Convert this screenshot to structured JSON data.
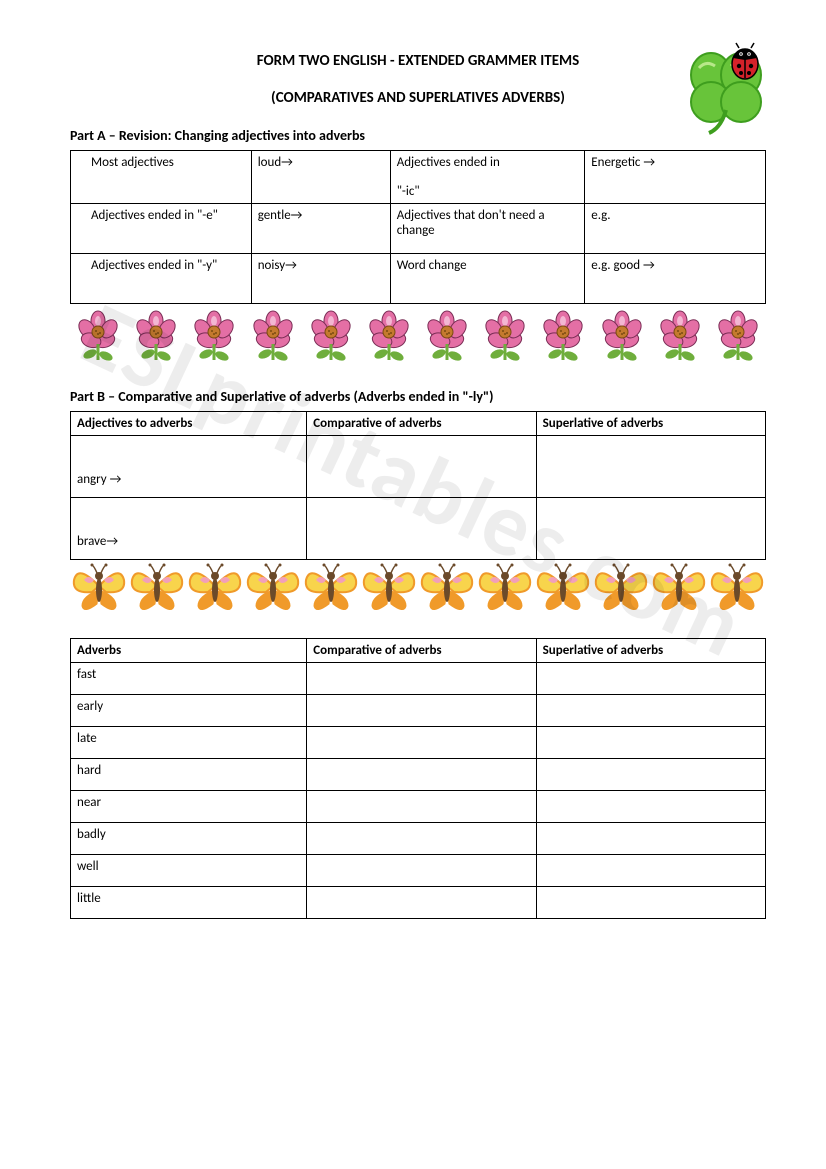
{
  "title_line1": "FORM TWO ENGLISH - EXTENDED GRAMMER ITEMS",
  "title_line2": "(COMPARATIVES AND SUPERLATIVES ADVERBS)",
  "watermark_text": "ESLprintables.com",
  "partA": {
    "heading": "Part A – Revision: Changing adjectives into adverbs",
    "rows": [
      [
        "Most adjectives",
        "loud→",
        "Adjectives ended in \"-ic\"",
        "Energetic →"
      ],
      [
        "Adjectives ended in \"-e\"",
        "gentle→",
        "Adjectives that don't need a change",
        "e.g."
      ],
      [
        "Adjectives ended in \"-y\"",
        "noisy→",
        "Word change",
        "e.g. good →"
      ]
    ],
    "col_widths": [
      "26%",
      "20%",
      "28%",
      "26%"
    ]
  },
  "partB": {
    "heading": "Part B – Comparative and Superlative of adverbs (Adverbs ended in \"-ly\")",
    "headers": [
      "Adjectives to adverbs",
      "Comparative of adverbs",
      "Superlative of adverbs"
    ],
    "rows": [
      "angry →",
      "brave→"
    ]
  },
  "partC": {
    "headers": [
      "Adverbs",
      "Comparative of adverbs",
      "Superlative of adverbs"
    ],
    "rows": [
      "fast",
      "early",
      "late",
      "hard",
      "near",
      "badly",
      "well",
      "little"
    ]
  },
  "flower_band": {
    "count": 12
  },
  "butterfly_band": {
    "count": 12
  },
  "colors": {
    "flower_petal": "#e46fa5",
    "flower_highlight": "#f3b6d2",
    "flower_center": "#c47a2e",
    "flower_leaf": "#6fae3c",
    "butterfly_wing": "#f8d44c",
    "butterfly_wing2": "#f09a2a",
    "butterfly_heart": "#f2a0b9",
    "butterfly_body": "#6b4a2a",
    "clover": "#68c43a",
    "clover_dark": "#3e9e1e",
    "ladybug": "#d4222a",
    "ladybug_dark": "#000000"
  }
}
